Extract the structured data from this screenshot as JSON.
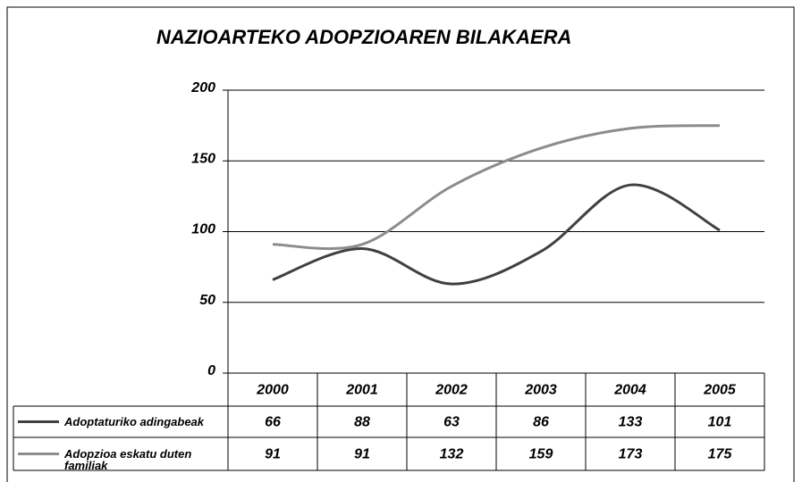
{
  "chart_data": {
    "type": "line",
    "title": "NAZIOARTEKO ADOPZIOAREN BILAKAERA",
    "categories": [
      "2000",
      "2001",
      "2002",
      "2003",
      "2004",
      "2005"
    ],
    "series": [
      {
        "name": "Adoptaturiko adingabeak",
        "color": "#404040",
        "values": [
          66,
          88,
          63,
          86,
          133,
          101
        ]
      },
      {
        "name": "Adopzioa eskatu duten familiak",
        "color": "#8c8c8c",
        "values": [
          91,
          91,
          132,
          159,
          173,
          175
        ]
      }
    ],
    "ylim": [
      0,
      200
    ],
    "yticks": [
      0,
      50,
      100,
      150,
      200
    ],
    "grid": true
  }
}
